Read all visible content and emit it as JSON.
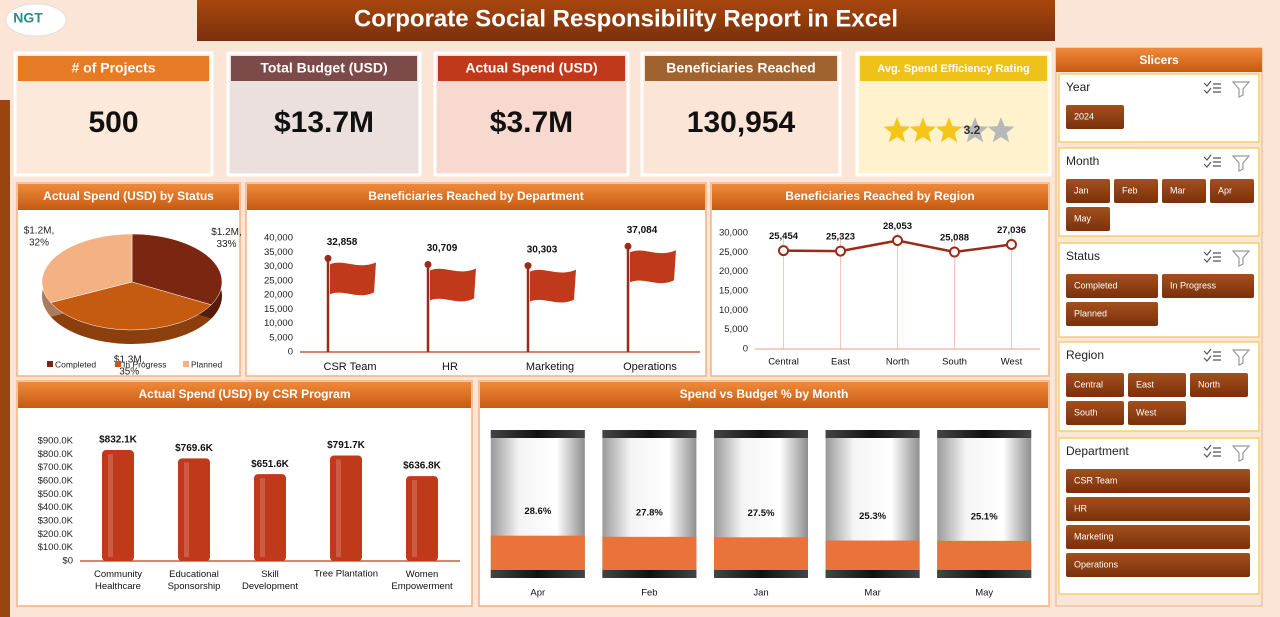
{
  "header": {
    "logo": "NGT",
    "title": "Corporate Social Responsibility Report in Excel"
  },
  "kpis": [
    {
      "label": "# of Projects",
      "value": "500"
    },
    {
      "label": "Total Budget (USD)",
      "value": "$13.7M"
    },
    {
      "label": "Actual Spend (USD)",
      "value": "$3.7M"
    },
    {
      "label": "Beneficiaries Reached",
      "value": "130,954"
    },
    {
      "label": "Avg. Spend Efficiency Rating",
      "rating": 3.2
    }
  ],
  "chart_data": [
    {
      "type": "pie",
      "title": "Actual Spend (USD) by Status",
      "categories": [
        "Completed",
        "In Progress",
        "Planned"
      ],
      "values": [
        1220000,
        1300000,
        1190000
      ],
      "value_labels": [
        "$1.2M,",
        "$1.3M,",
        "$1.2M,"
      ],
      "share_labels": [
        "33%",
        "35%",
        "32%"
      ],
      "colors": [
        "#7a2610",
        "#c55a11",
        "#f4b183"
      ]
    },
    {
      "type": "flag",
      "title": "Beneficiaries Reached by Department",
      "categories": [
        "CSR Team",
        "HR",
        "Marketing",
        "Operations"
      ],
      "values": [
        32858,
        30709,
        30303,
        37084
      ],
      "value_labels": [
        "32,858",
        "30,709",
        "30,303",
        "37,084"
      ],
      "color": "#c0391b",
      "ylim": [
        0,
        40000
      ],
      "yticks": [
        0,
        {
          "value": 5000,
          "label": "5,000"
        },
        {
          "value": 10000,
          "label": "10,000"
        },
        {
          "value": 15000,
          "label": "15,000"
        },
        {
          "value": 20000,
          "label": "20,000"
        },
        {
          "value": 25000,
          "label": "25,000"
        },
        {
          "value": 30000,
          "label": "30,000"
        },
        {
          "value": 35000,
          "label": "35,000"
        },
        {
          "value": 40000,
          "label": "40,000"
        }
      ]
    },
    {
      "type": "line",
      "title": "Beneficiaries Reached by Region",
      "categories": [
        "Central",
        "East",
        "North",
        "South",
        "West"
      ],
      "values": [
        25454,
        25323,
        28053,
        25088,
        27036
      ],
      "value_labels": [
        "25,454",
        "25,323",
        "28,053",
        "25,088",
        "27,036"
      ],
      "color": "#9c2a1a",
      "ylim": [
        0,
        30000
      ],
      "yticks": [
        0,
        {
          "value": 5000,
          "label": "5,000"
        },
        {
          "value": 10000,
          "label": "10,000"
        },
        {
          "value": 15000,
          "label": "15,000"
        },
        {
          "value": 20000,
          "label": "20,000"
        },
        {
          "value": 25000,
          "label": "25,000"
        },
        {
          "value": 30000,
          "label": "30,000"
        }
      ]
    },
    {
      "type": "bar3d",
      "title": "Actual Spend (USD) by CSR Program",
      "categories": [
        "Community\nHealthcare",
        "Educational\nSponsorship",
        "Skill\nDevelopment",
        "Tree Plantation",
        "Women\nEmpowerment"
      ],
      "values": [
        832100,
        769600,
        651600,
        791700,
        636800
      ],
      "value_labels": [
        "$832.1K",
        "$769.6K",
        "$651.6K",
        "$791.7K",
        "$636.8K"
      ],
      "color": "#c0391b",
      "ylim": [
        0,
        900000
      ],
      "yticks": [
        {
          "value": 0,
          "label": "$0"
        },
        {
          "value": 100000,
          "label": "$100.0K"
        },
        {
          "value": 200000,
          "label": "$200.0K"
        },
        {
          "value": 300000,
          "label": "$300.0K"
        },
        {
          "value": 400000,
          "label": "$400.0K"
        },
        {
          "value": 500000,
          "label": "$500.0K"
        },
        {
          "value": 600000,
          "label": "$600.0K"
        },
        {
          "value": 700000,
          "label": "$700.0K"
        },
        {
          "value": 800000,
          "label": "$800.0K"
        },
        {
          "value": 900000,
          "label": "$900.0K"
        }
      ]
    },
    {
      "type": "cylinder",
      "title": "Spend vs Budget % by Month",
      "categories": [
        "Apr",
        "Feb",
        "Jan",
        "Mar",
        "May"
      ],
      "values": [
        28.6,
        27.8,
        27.5,
        25.3,
        25.1
      ],
      "value_labels": [
        "28.6%",
        "27.8%",
        "27.5%",
        "25.3%",
        "25.1%"
      ],
      "color": "#e9733a",
      "ylim": [
        0,
        100
      ]
    }
  ],
  "slicers": {
    "title": "Slicers",
    "groups": [
      {
        "name": "Year",
        "items": [
          "2024"
        ]
      },
      {
        "name": "Month",
        "items": [
          "Jan",
          "Feb",
          "Mar",
          "Apr",
          "May"
        ]
      },
      {
        "name": "Status",
        "items": [
          "Completed",
          "In Progress",
          "Planned"
        ]
      },
      {
        "name": "Region",
        "items": [
          "Central",
          "East",
          "North",
          "South",
          "West"
        ]
      },
      {
        "name": "Department",
        "items": [
          "CSR Team",
          "HR",
          "Marketing",
          "Operations"
        ]
      }
    ]
  }
}
